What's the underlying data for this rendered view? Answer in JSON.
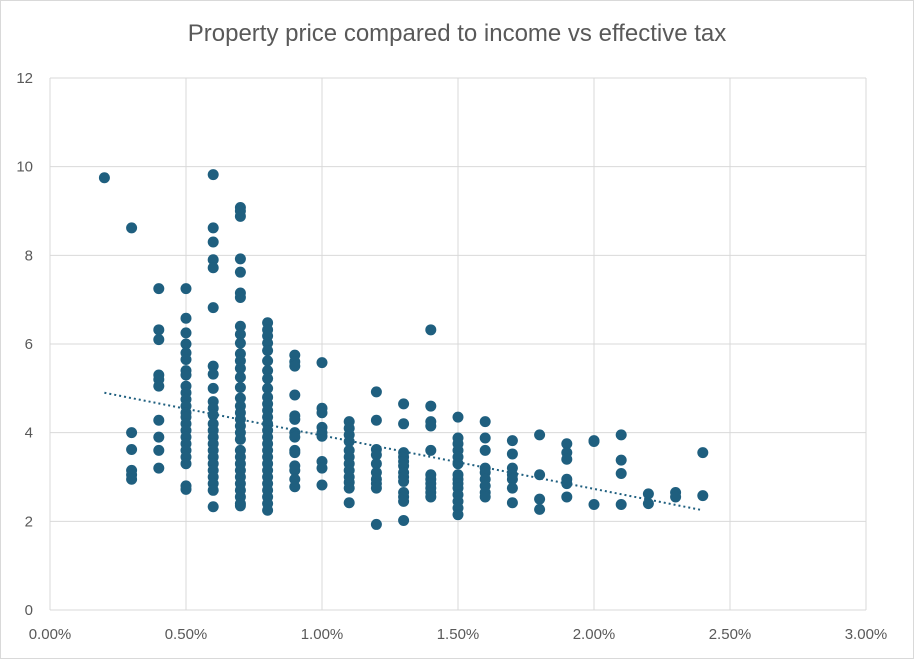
{
  "chart_data": {
    "type": "scatter",
    "title": "Property price compared to income vs effective tax",
    "xlabel": "",
    "ylabel": "",
    "xlim": [
      0,
      0.03
    ],
    "ylim": [
      0,
      12
    ],
    "x_ticks": [
      "0.00%",
      "0.50%",
      "1.00%",
      "1.50%",
      "2.00%",
      "2.50%",
      "3.00%"
    ],
    "y_ticks": [
      "0",
      "2",
      "4",
      "6",
      "8",
      "10",
      "12"
    ],
    "grid": true,
    "legend": "none",
    "colors": {
      "points": "#1f5f7f",
      "trendline": "#1f5f7f",
      "grid": "#d9d9d9"
    },
    "trendline": {
      "type": "linear",
      "style": "dotted",
      "x": [
        0.002,
        0.024
      ],
      "y": [
        4.9,
        2.25
      ]
    },
    "points": [
      [
        0.002,
        9.75
      ],
      [
        0.003,
        8.62
      ],
      [
        0.003,
        4.0
      ],
      [
        0.003,
        3.62
      ],
      [
        0.003,
        3.15
      ],
      [
        0.003,
        3.05
      ],
      [
        0.003,
        2.95
      ],
      [
        0.004,
        7.25
      ],
      [
        0.004,
        6.32
      ],
      [
        0.004,
        6.1
      ],
      [
        0.004,
        5.3
      ],
      [
        0.004,
        5.2
      ],
      [
        0.004,
        5.05
      ],
      [
        0.004,
        4.28
      ],
      [
        0.004,
        3.9
      ],
      [
        0.004,
        3.6
      ],
      [
        0.004,
        3.2
      ],
      [
        0.005,
        7.25
      ],
      [
        0.005,
        6.58
      ],
      [
        0.005,
        6.25
      ],
      [
        0.005,
        6.0
      ],
      [
        0.005,
        5.8
      ],
      [
        0.005,
        5.65
      ],
      [
        0.005,
        5.4
      ],
      [
        0.005,
        5.3
      ],
      [
        0.005,
        5.05
      ],
      [
        0.005,
        4.9
      ],
      [
        0.005,
        4.75
      ],
      [
        0.005,
        4.6
      ],
      [
        0.005,
        4.45
      ],
      [
        0.005,
        4.35
      ],
      [
        0.005,
        4.2
      ],
      [
        0.005,
        4.05
      ],
      [
        0.005,
        3.9
      ],
      [
        0.005,
        3.75
      ],
      [
        0.005,
        3.6
      ],
      [
        0.005,
        3.45
      ],
      [
        0.005,
        3.3
      ],
      [
        0.005,
        2.8
      ],
      [
        0.005,
        2.72
      ],
      [
        0.006,
        9.82
      ],
      [
        0.006,
        8.62
      ],
      [
        0.006,
        8.3
      ],
      [
        0.006,
        7.9
      ],
      [
        0.006,
        7.72
      ],
      [
        0.006,
        6.82
      ],
      [
        0.006,
        5.5
      ],
      [
        0.006,
        5.32
      ],
      [
        0.006,
        5.0
      ],
      [
        0.006,
        4.7
      ],
      [
        0.006,
        4.55
      ],
      [
        0.006,
        4.4
      ],
      [
        0.006,
        4.2
      ],
      [
        0.006,
        4.05
      ],
      [
        0.006,
        3.9
      ],
      [
        0.006,
        3.75
      ],
      [
        0.006,
        3.6
      ],
      [
        0.006,
        3.45
      ],
      [
        0.006,
        3.3
      ],
      [
        0.006,
        3.15
      ],
      [
        0.006,
        3.0
      ],
      [
        0.006,
        2.85
      ],
      [
        0.006,
        2.7
      ],
      [
        0.006,
        2.33
      ],
      [
        0.007,
        9.08
      ],
      [
        0.007,
        9.0
      ],
      [
        0.007,
        8.88
      ],
      [
        0.007,
        7.92
      ],
      [
        0.007,
        7.62
      ],
      [
        0.007,
        7.15
      ],
      [
        0.007,
        7.05
      ],
      [
        0.007,
        6.4
      ],
      [
        0.007,
        6.22
      ],
      [
        0.007,
        6.02
      ],
      [
        0.007,
        5.78
      ],
      [
        0.007,
        5.62
      ],
      [
        0.007,
        5.45
      ],
      [
        0.007,
        5.25
      ],
      [
        0.007,
        5.02
      ],
      [
        0.007,
        4.78
      ],
      [
        0.007,
        4.6
      ],
      [
        0.007,
        4.45
      ],
      [
        0.007,
        4.3
      ],
      [
        0.007,
        4.15
      ],
      [
        0.007,
        4.0
      ],
      [
        0.007,
        3.85
      ],
      [
        0.007,
        3.6
      ],
      [
        0.007,
        3.45
      ],
      [
        0.007,
        3.3
      ],
      [
        0.007,
        3.15
      ],
      [
        0.007,
        3.0
      ],
      [
        0.007,
        2.85
      ],
      [
        0.007,
        2.7
      ],
      [
        0.007,
        2.55
      ],
      [
        0.007,
        2.4
      ],
      [
        0.007,
        2.35
      ],
      [
        0.008,
        6.48
      ],
      [
        0.008,
        6.32
      ],
      [
        0.008,
        6.18
      ],
      [
        0.008,
        6.02
      ],
      [
        0.008,
        5.85
      ],
      [
        0.008,
        5.62
      ],
      [
        0.008,
        5.4
      ],
      [
        0.008,
        5.22
      ],
      [
        0.008,
        5.0
      ],
      [
        0.008,
        4.8
      ],
      [
        0.008,
        4.65
      ],
      [
        0.008,
        4.5
      ],
      [
        0.008,
        4.35
      ],
      [
        0.008,
        4.2
      ],
      [
        0.008,
        4.05
      ],
      [
        0.008,
        3.9
      ],
      [
        0.008,
        3.75
      ],
      [
        0.008,
        3.6
      ],
      [
        0.008,
        3.45
      ],
      [
        0.008,
        3.3
      ],
      [
        0.008,
        3.15
      ],
      [
        0.008,
        3.0
      ],
      [
        0.008,
        2.85
      ],
      [
        0.008,
        2.7
      ],
      [
        0.008,
        2.55
      ],
      [
        0.008,
        2.4
      ],
      [
        0.008,
        2.25
      ],
      [
        0.009,
        5.75
      ],
      [
        0.009,
        5.6
      ],
      [
        0.009,
        5.5
      ],
      [
        0.009,
        4.85
      ],
      [
        0.009,
        4.38
      ],
      [
        0.009,
        4.3
      ],
      [
        0.009,
        4.0
      ],
      [
        0.009,
        3.9
      ],
      [
        0.009,
        3.6
      ],
      [
        0.009,
        3.55
      ],
      [
        0.009,
        3.25
      ],
      [
        0.009,
        3.15
      ],
      [
        0.009,
        2.95
      ],
      [
        0.009,
        2.78
      ],
      [
        0.01,
        5.58
      ],
      [
        0.01,
        4.55
      ],
      [
        0.01,
        4.45
      ],
      [
        0.01,
        4.12
      ],
      [
        0.01,
        4.0
      ],
      [
        0.01,
        3.92
      ],
      [
        0.01,
        3.35
      ],
      [
        0.01,
        3.2
      ],
      [
        0.01,
        2.82
      ],
      [
        0.011,
        4.25
      ],
      [
        0.011,
        4.1
      ],
      [
        0.011,
        3.95
      ],
      [
        0.011,
        3.8
      ],
      [
        0.011,
        3.6
      ],
      [
        0.011,
        3.45
      ],
      [
        0.011,
        3.3
      ],
      [
        0.011,
        3.15
      ],
      [
        0.011,
        3.0
      ],
      [
        0.011,
        2.88
      ],
      [
        0.011,
        2.75
      ],
      [
        0.011,
        2.42
      ],
      [
        0.012,
        4.92
      ],
      [
        0.012,
        4.28
      ],
      [
        0.012,
        3.62
      ],
      [
        0.012,
        3.5
      ],
      [
        0.012,
        3.3
      ],
      [
        0.012,
        3.1
      ],
      [
        0.012,
        2.95
      ],
      [
        0.012,
        2.85
      ],
      [
        0.012,
        2.75
      ],
      [
        0.012,
        1.93
      ],
      [
        0.013,
        4.65
      ],
      [
        0.013,
        4.2
      ],
      [
        0.013,
        3.55
      ],
      [
        0.013,
        3.45
      ],
      [
        0.013,
        3.35
      ],
      [
        0.013,
        3.25
      ],
      [
        0.013,
        3.1
      ],
      [
        0.013,
        3.0
      ],
      [
        0.013,
        2.9
      ],
      [
        0.013,
        2.65
      ],
      [
        0.013,
        2.55
      ],
      [
        0.013,
        2.45
      ],
      [
        0.013,
        2.02
      ],
      [
        0.014,
        6.32
      ],
      [
        0.014,
        4.6
      ],
      [
        0.014,
        4.25
      ],
      [
        0.014,
        4.15
      ],
      [
        0.014,
        3.6
      ],
      [
        0.014,
        3.05
      ],
      [
        0.014,
        2.95
      ],
      [
        0.014,
        2.85
      ],
      [
        0.014,
        2.75
      ],
      [
        0.014,
        2.65
      ],
      [
        0.014,
        2.55
      ],
      [
        0.015,
        4.35
      ],
      [
        0.015,
        3.88
      ],
      [
        0.015,
        3.75
      ],
      [
        0.015,
        3.6
      ],
      [
        0.015,
        3.45
      ],
      [
        0.015,
        3.3
      ],
      [
        0.015,
        3.05
      ],
      [
        0.015,
        2.95
      ],
      [
        0.015,
        2.85
      ],
      [
        0.015,
        2.75
      ],
      [
        0.015,
        2.6
      ],
      [
        0.015,
        2.45
      ],
      [
        0.015,
        2.3
      ],
      [
        0.015,
        2.15
      ],
      [
        0.016,
        4.25
      ],
      [
        0.016,
        3.88
      ],
      [
        0.016,
        3.6
      ],
      [
        0.016,
        3.2
      ],
      [
        0.016,
        3.1
      ],
      [
        0.016,
        2.95
      ],
      [
        0.016,
        2.8
      ],
      [
        0.016,
        2.65
      ],
      [
        0.016,
        2.55
      ],
      [
        0.017,
        3.82
      ],
      [
        0.017,
        3.52
      ],
      [
        0.017,
        3.2
      ],
      [
        0.017,
        3.05
      ],
      [
        0.017,
        2.95
      ],
      [
        0.017,
        2.75
      ],
      [
        0.017,
        2.42
      ],
      [
        0.018,
        3.95
      ],
      [
        0.018,
        3.05
      ],
      [
        0.018,
        2.5
      ],
      [
        0.018,
        2.27
      ],
      [
        0.019,
        3.75
      ],
      [
        0.019,
        3.55
      ],
      [
        0.019,
        3.4
      ],
      [
        0.019,
        2.95
      ],
      [
        0.019,
        2.85
      ],
      [
        0.019,
        2.55
      ],
      [
        0.02,
        3.82
      ],
      [
        0.02,
        3.8
      ],
      [
        0.02,
        2.38
      ],
      [
        0.021,
        3.95
      ],
      [
        0.021,
        3.38
      ],
      [
        0.021,
        3.08
      ],
      [
        0.021,
        2.38
      ],
      [
        0.022,
        2.62
      ],
      [
        0.022,
        2.4
      ],
      [
        0.023,
        2.65
      ],
      [
        0.023,
        2.55
      ],
      [
        0.024,
        3.55
      ],
      [
        0.024,
        2.58
      ]
    ]
  }
}
